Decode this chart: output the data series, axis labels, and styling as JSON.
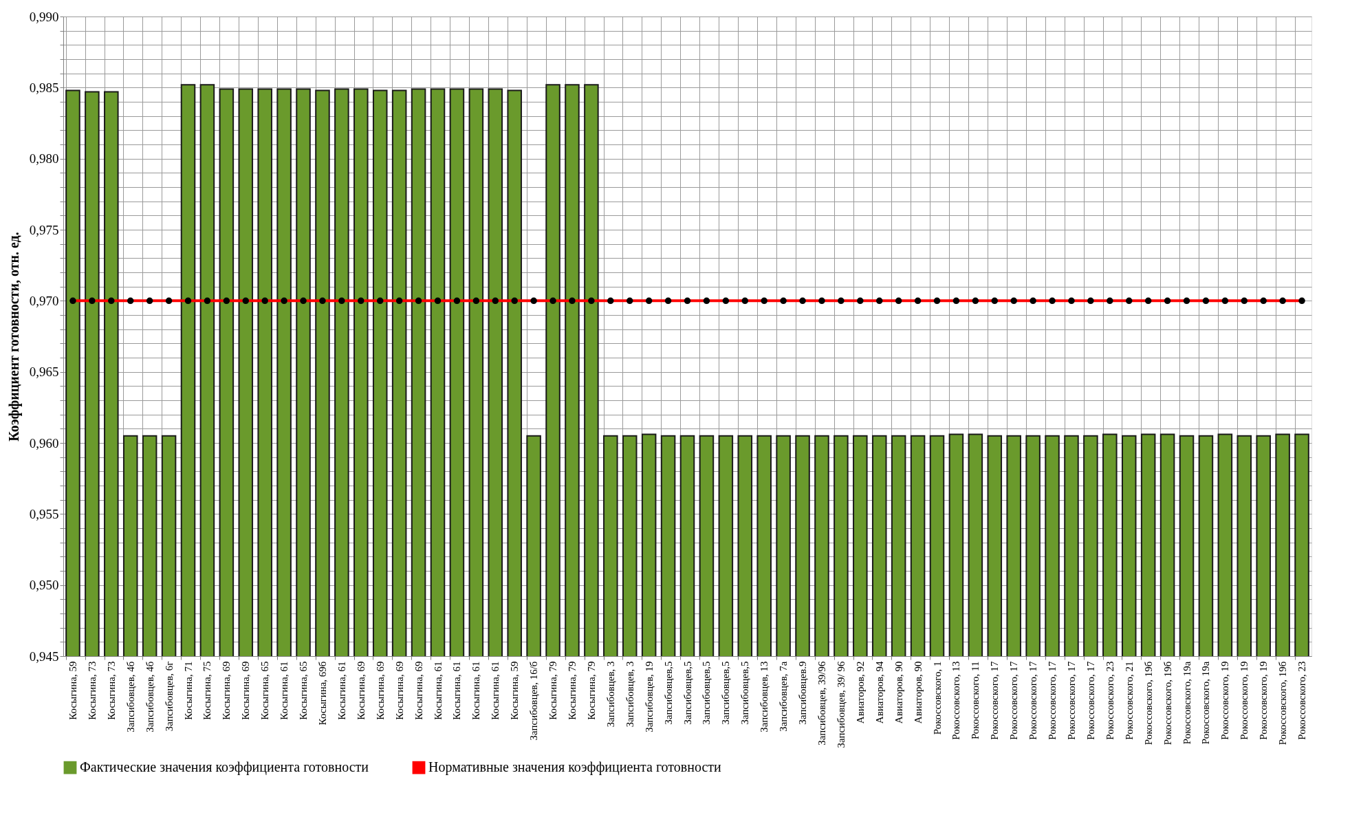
{
  "chart_data": {
    "type": "bar",
    "ylabel": "Коэффициент готовности, отн. ед.",
    "categories": [
      "Косыгина, 59",
      "Косыгина, 73",
      "Косыгина, 73",
      "Запсибовцев, 4б",
      "Запсибовцев, 4б",
      "Запсибовцев, 6г",
      "Косыгина, 71",
      "Косыгина, 75",
      "Косыгина, 69",
      "Косыгина, 69",
      "Косыгина, 65",
      "Косыгина, 61",
      "Косыгина, 65",
      "Косыгина, 69б",
      "Косыгина, 61",
      "Косыгина, 69",
      "Косыгина, 69",
      "Косыгина, 69",
      "Косыгина, 69",
      "Косыгина, 61",
      "Косыгина, 61",
      "Косыгина, 61",
      "Косыгина, 61",
      "Косыгина, 59",
      "Запсибовцев, 16/б",
      "Косыгина, 79",
      "Косыгина, 79",
      "Косыгина, 79",
      "Запсибовцев, 3",
      "Запсибовцев, 3",
      "Запсибовцев, 19",
      "Запсибовцев,5",
      "Запсибовцев,5",
      "Запсибовцев,5",
      "Запсибовцев,5",
      "Запсибовцев,5",
      "Запсибовцев, 13",
      "Запсибовцев, 7а",
      "Запсибовцев.9",
      "Запсибовцев, 39/96",
      "Запсибовцев, 39/ 96",
      "Авиаторов, 92",
      "Авиаторов, 94",
      "Авиаторов, 90",
      "Авиаторов, 90",
      "Рокоссовского, 1",
      "Рокоссовского, 13",
      "Рокоссовского, 11",
      "Рокоссовского, 17",
      "Рокоссовского, 17",
      "Рокоссовского, 17",
      "Рокоссовского, 17",
      "Рокоссовского, 17",
      "Рокоссовского, 17",
      "Рокоссовского, 23",
      "Рокоссовского, 21",
      "Рокоссовского, 19б",
      "Рокоссовского, 19б",
      "Рокоссовского, 19а",
      "Рокоссовского, 19а",
      "Рокоссовского, 19",
      "Рокоссовского, 19",
      "Рокоссовского, 19",
      "Рокоссовского, 19б",
      "Рокоссовского, 23"
    ],
    "series": [
      {
        "name": "Фактические значения коэффициента готовности",
        "color": "#6a9a2c",
        "values": [
          0.9848,
          0.9847,
          0.9847,
          0.9605,
          0.9605,
          0.9605,
          0.9852,
          0.9852,
          0.9849,
          0.9849,
          0.9849,
          0.9849,
          0.9849,
          0.9848,
          0.9849,
          0.9849,
          0.9848,
          0.9848,
          0.9849,
          0.9849,
          0.9849,
          0.9849,
          0.9849,
          0.9848,
          0.9605,
          0.9852,
          0.9852,
          0.9852,
          0.9605,
          0.9605,
          0.9606,
          0.9605,
          0.9605,
          0.9605,
          0.9605,
          0.9605,
          0.9605,
          0.9605,
          0.9605,
          0.9605,
          0.9605,
          0.9605,
          0.9605,
          0.9605,
          0.9605,
          0.9605,
          0.9606,
          0.9606,
          0.9605,
          0.9605,
          0.9605,
          0.9605,
          0.9605,
          0.9605,
          0.9606,
          0.9605,
          0.9606,
          0.9606,
          0.9605,
          0.9605,
          0.9606,
          0.9605,
          0.9605,
          0.9606,
          0.9606
        ]
      },
      {
        "name": "Нормативные значения коэффициента готовности",
        "type": "line",
        "color": "#ff0000",
        "marker": "circle",
        "values": [
          0.97,
          0.97,
          0.97,
          0.97,
          0.97,
          0.97,
          0.97,
          0.97,
          0.97,
          0.97,
          0.97,
          0.97,
          0.97,
          0.97,
          0.97,
          0.97,
          0.97,
          0.97,
          0.97,
          0.97,
          0.97,
          0.97,
          0.97,
          0.97,
          0.97,
          0.97,
          0.97,
          0.97,
          0.97,
          0.97,
          0.97,
          0.97,
          0.97,
          0.97,
          0.97,
          0.97,
          0.97,
          0.97,
          0.97,
          0.97,
          0.97,
          0.97,
          0.97,
          0.97,
          0.97,
          0.97,
          0.97,
          0.97,
          0.97,
          0.97,
          0.97,
          0.97,
          0.97,
          0.97,
          0.97,
          0.97,
          0.97,
          0.97,
          0.97,
          0.97,
          0.97,
          0.97,
          0.97,
          0.97,
          0.97
        ]
      }
    ],
    "ylim": [
      0.945,
      0.99
    ],
    "yticks": [
      {
        "value": 0.945,
        "label": "0,945"
      },
      {
        "value": 0.946,
        "label": null
      },
      {
        "value": 0.947,
        "label": null
      },
      {
        "value": 0.948,
        "label": null
      },
      {
        "value": 0.949,
        "label": null
      },
      {
        "value": 0.95,
        "label": "0,950"
      },
      {
        "value": 0.951,
        "label": null
      },
      {
        "value": 0.952,
        "label": null
      },
      {
        "value": 0.953,
        "label": null
      },
      {
        "value": 0.954,
        "label": null
      },
      {
        "value": 0.955,
        "label": "0,955"
      },
      {
        "value": 0.956,
        "label": null
      },
      {
        "value": 0.957,
        "label": null
      },
      {
        "value": 0.958,
        "label": null
      },
      {
        "value": 0.959,
        "label": null
      },
      {
        "value": 0.96,
        "label": "0,960"
      },
      {
        "value": 0.961,
        "label": null
      },
      {
        "value": 0.962,
        "label": null
      },
      {
        "value": 0.963,
        "label": null
      },
      {
        "value": 0.964,
        "label": null
      },
      {
        "value": 0.965,
        "label": "0,965"
      },
      {
        "value": 0.966,
        "label": null
      },
      {
        "value": 0.967,
        "label": null
      },
      {
        "value": 0.968,
        "label": null
      },
      {
        "value": 0.969,
        "label": null
      },
      {
        "value": 0.97,
        "label": "0,970"
      },
      {
        "value": 0.971,
        "label": null
      },
      {
        "value": 0.972,
        "label": null
      },
      {
        "value": 0.973,
        "label": null
      },
      {
        "value": 0.974,
        "label": null
      },
      {
        "value": 0.975,
        "label": "0,975"
      },
      {
        "value": 0.976,
        "label": null
      },
      {
        "value": 0.977,
        "label": null
      },
      {
        "value": 0.978,
        "label": null
      },
      {
        "value": 0.979,
        "label": null
      },
      {
        "value": 0.98,
        "label": "0,980"
      },
      {
        "value": 0.981,
        "label": null
      },
      {
        "value": 0.982,
        "label": null
      },
      {
        "value": 0.983,
        "label": null
      },
      {
        "value": 0.984,
        "label": null
      },
      {
        "value": 0.985,
        "label": "0,985"
      },
      {
        "value": 0.986,
        "label": null
      },
      {
        "value": 0.987,
        "label": null
      },
      {
        "value": 0.988,
        "label": null
      },
      {
        "value": 0.989,
        "label": null
      },
      {
        "value": 0.99,
        "label": "0,990"
      }
    ],
    "grid": true,
    "legend": "bottom"
  }
}
